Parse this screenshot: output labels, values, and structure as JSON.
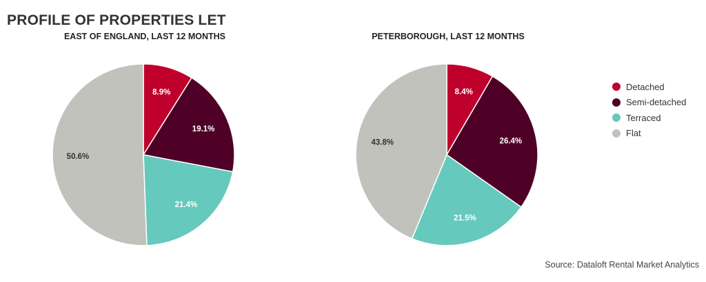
{
  "title": "PROFILE OF PROPERTIES LET",
  "source": "Source: Dataloft Rental Market Analytics",
  "legend": [
    {
      "label": "Detached",
      "color": "#c0002c"
    },
    {
      "label": "Semi-detached",
      "color": "#4e0026"
    },
    {
      "label": "Terraced",
      "color": "#66c9bd"
    },
    {
      "label": "Flat",
      "color": "#c1c2bc"
    }
  ],
  "chart_data": [
    {
      "type": "pie",
      "title": "EAST OF ENGLAND, LAST 12 MONTHS",
      "categories": [
        "Detached",
        "Semi-detached",
        "Terraced",
        "Flat"
      ],
      "values": [
        8.9,
        19.1,
        21.4,
        50.6
      ],
      "labels": [
        "8.9%",
        "19.1%",
        "21.4%",
        "50.6%"
      ],
      "colors": [
        "#c0002c",
        "#4e0026",
        "#66c9bd",
        "#c1c2bc"
      ],
      "label_colors": [
        "#ffffff",
        "#ffffff",
        "#ffffff",
        "#333333"
      ],
      "start": "12 o'clock",
      "direction": "clockwise",
      "legend_position": "right"
    },
    {
      "type": "pie",
      "title": "PETERBOROUGH, LAST 12 MONTHS",
      "categories": [
        "Detached",
        "Semi-detached",
        "Terraced",
        "Flat"
      ],
      "values": [
        8.4,
        26.4,
        21.5,
        43.8
      ],
      "labels": [
        "8.4%",
        "26.4%",
        "21.5%",
        "43.8%"
      ],
      "colors": [
        "#c0002c",
        "#4e0026",
        "#66c9bd",
        "#c1c2bc"
      ],
      "label_colors": [
        "#ffffff",
        "#ffffff",
        "#ffffff",
        "#333333"
      ],
      "start": "12 o'clock",
      "direction": "clockwise",
      "legend_position": "right"
    }
  ]
}
